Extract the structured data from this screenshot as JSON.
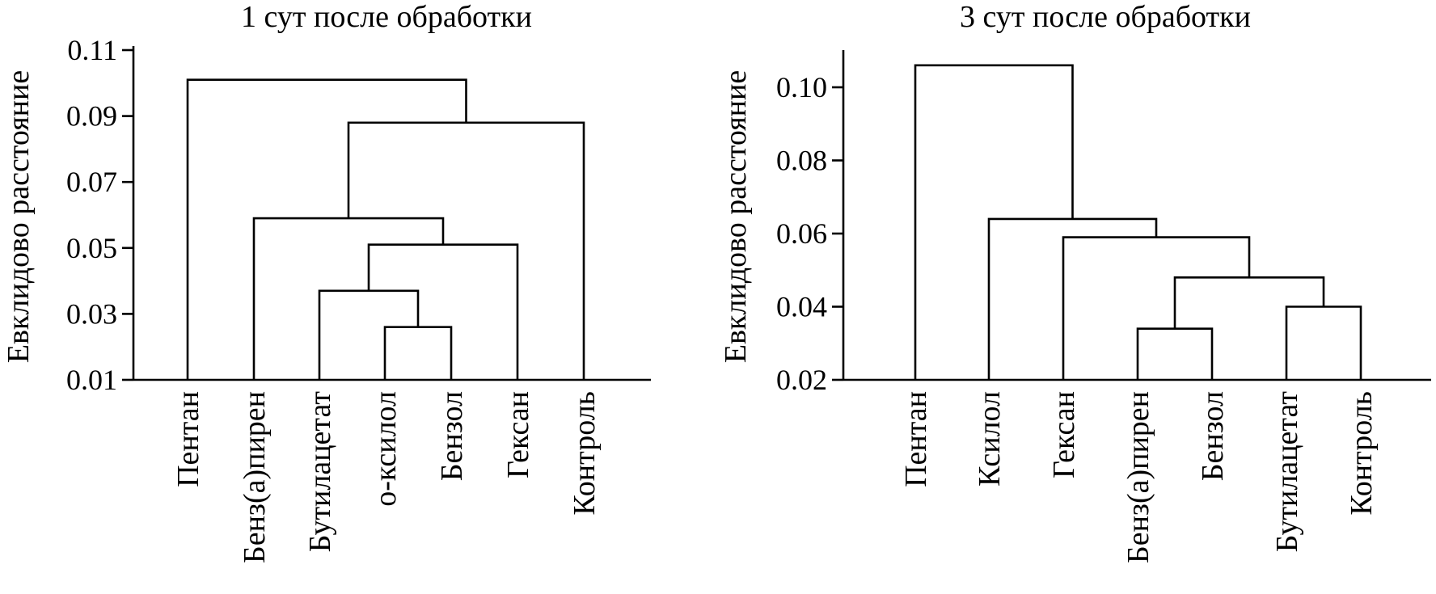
{
  "chart_data": [
    {
      "type": "dendrogram",
      "title": "1 сут после обработки",
      "ylabel": "Евклидово расстояние",
      "ylim": [
        0.01,
        0.11
      ],
      "yticks": [
        "0.01",
        "0.03",
        "0.05",
        "0.07",
        "0.09",
        "0.11"
      ],
      "leaves": [
        "Пентан",
        "Бенз(а)пирен",
        "Бутилацетат",
        "о-ксилол",
        "Бензол",
        "Гексан",
        "Контроль"
      ],
      "merges": [
        {
          "left": "о-ксилол",
          "right": "Бензол",
          "height": 0.026
        },
        {
          "left": "Бутилацетат",
          "right": "[о-ксилол, Бензол]",
          "height": 0.037
        },
        {
          "left": "[Бутилацетат, о-ксилол, Бензол]",
          "right": "Гексан",
          "height": 0.051
        },
        {
          "left": "Бенз(а)пирен",
          "right": "[Бутилацетат, о-ксилол, Бензол, Гексан]",
          "height": 0.059
        },
        {
          "left": "[Бенз(а)пирен … Гексан]",
          "right": "Контроль",
          "height": 0.088
        },
        {
          "left": "Пентан",
          "right": "[Бенз(а)пирен … Контроль]",
          "height": 0.101
        }
      ]
    },
    {
      "type": "dendrogram",
      "title": "3 сут после обработки",
      "ylabel": "Евклидово расстояние",
      "ylim": [
        0.02,
        0.11
      ],
      "yticks": [
        "0.02",
        "0.04",
        "0.06",
        "0.08",
        "0.10"
      ],
      "leaves": [
        "Пентан",
        "Ксилол",
        "Гексан",
        "Бенз(а)пирен",
        "Бензол",
        "Бутилацетат",
        "Контроль"
      ],
      "merges": [
        {
          "left": "Бенз(а)пирен",
          "right": "Бензол",
          "height": 0.034
        },
        {
          "left": "Бутилацетат",
          "right": "Контроль",
          "height": 0.04
        },
        {
          "left": "[Бенз(а)пирен, Бензол]",
          "right": "[Бутилацетат, Контроль]",
          "height": 0.048
        },
        {
          "left": "Гексан",
          "right": "[Бенз(а)пирен … Контроль]",
          "height": 0.059
        },
        {
          "left": "Ксилол",
          "right": "[Гексан … Контроль]",
          "height": 0.064
        },
        {
          "left": "Пентан",
          "right": "[Ксилол … Контроль]",
          "height": 0.106
        }
      ]
    }
  ]
}
